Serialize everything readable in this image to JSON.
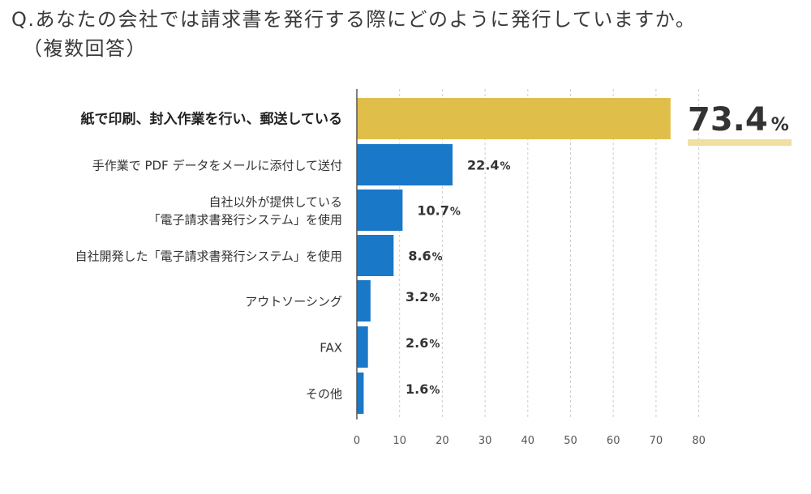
{
  "title": {
    "line1": "Q.あなたの会社では請求書を発行する際にどのように発行していますか。",
    "line2": "（複数回答）"
  },
  "chart_data": {
    "type": "bar",
    "orientation": "horizontal",
    "categories": [
      [
        "紙で印刷、封入作業を行い、郵送している"
      ],
      [
        "手作業で PDF データをメールに添付して送付"
      ],
      [
        "自社以外が提供している",
        "「電子請求書発行システム」を使用"
      ],
      [
        "自社開発した「電子請求書発行システム」を使用"
      ],
      [
        "アウトソーシング"
      ],
      [
        "FAX"
      ],
      [
        "その他"
      ]
    ],
    "values": [
      73.4,
      22.4,
      10.7,
      8.6,
      3.2,
      2.6,
      1.6
    ],
    "value_unit": "%",
    "xlim": [
      0,
      80
    ],
    "xticks": [
      0,
      10,
      20,
      30,
      40,
      50,
      60,
      70,
      80
    ],
    "grid": "vertical-dashed",
    "colors": {
      "highlight": "#e0be4a",
      "highlight_underline": "#f0dfa0",
      "bar": "#1a78c8",
      "grid": "#cccccc",
      "axis": "#555555"
    }
  }
}
